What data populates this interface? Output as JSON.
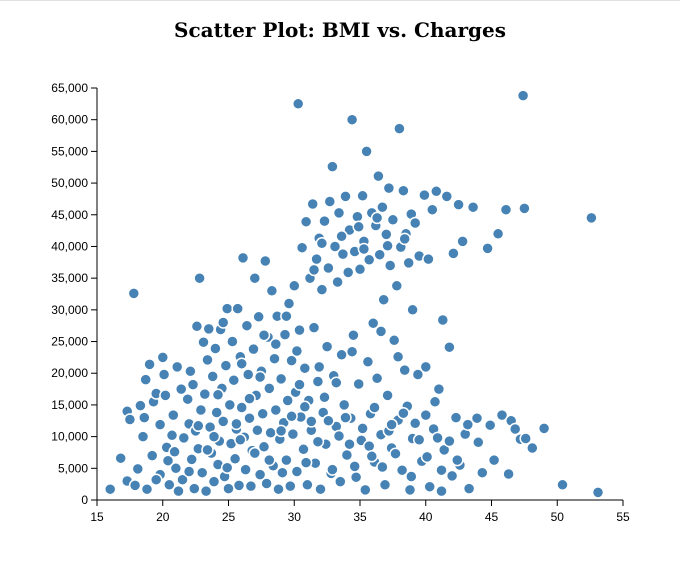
{
  "chart_data": {
    "type": "scatter",
    "title": "Scatter Plot: BMI vs. Charges",
    "xlabel": "",
    "ylabel": "",
    "xlim": [
      15,
      55
    ],
    "ylim": [
      0,
      65000
    ],
    "x_ticks": [
      "15",
      "20",
      "25",
      "30",
      "35",
      "40",
      "45",
      "50",
      "55"
    ],
    "y_ticks": [
      "0",
      "5,000",
      "10,000",
      "15,000",
      "20,000",
      "25,000",
      "30,000",
      "35,000",
      "40,000",
      "45,000",
      "50,000",
      "55,000",
      "60,000",
      "65,000"
    ],
    "grid": false,
    "point_color": "#4682b4",
    "points": [
      [
        16.0,
        1700
      ],
      [
        16.8,
        6600
      ],
      [
        17.3,
        3000
      ],
      [
        17.3,
        14000
      ],
      [
        17.5,
        12700
      ],
      [
        17.8,
        32600
      ],
      [
        17.9,
        2300
      ],
      [
        18.1,
        4900
      ],
      [
        18.3,
        14900
      ],
      [
        18.5,
        10000
      ],
      [
        18.6,
        13000
      ],
      [
        18.7,
        19000
      ],
      [
        18.8,
        1700
      ],
      [
        19.0,
        21400
      ],
      [
        19.2,
        7000
      ],
      [
        19.3,
        15500
      ],
      [
        19.5,
        16800
      ],
      [
        19.8,
        4000
      ],
      [
        19.8,
        11900
      ],
      [
        20.0,
        22500
      ],
      [
        20.1,
        19800
      ],
      [
        20.2,
        16500
      ],
      [
        20.3,
        8300
      ],
      [
        20.4,
        6200
      ],
      [
        20.5,
        2400
      ],
      [
        20.7,
        10200
      ],
      [
        20.8,
        13400
      ],
      [
        21.0,
        5000
      ],
      [
        21.1,
        21000
      ],
      [
        21.2,
        1400
      ],
      [
        21.5,
        3200
      ],
      [
        21.6,
        9800
      ],
      [
        21.9,
        15900
      ],
      [
        22.0,
        12000
      ],
      [
        22.1,
        20300
      ],
      [
        22.2,
        6400
      ],
      [
        22.3,
        18200
      ],
      [
        22.4,
        1800
      ],
      [
        22.5,
        10900
      ],
      [
        22.6,
        27400
      ],
      [
        22.7,
        8100
      ],
      [
        22.8,
        35000
      ],
      [
        22.9,
        14200
      ],
      [
        23.0,
        4300
      ],
      [
        23.1,
        24900
      ],
      [
        23.2,
        16700
      ],
      [
        23.3,
        1400
      ],
      [
        23.4,
        22100
      ],
      [
        23.5,
        27000
      ],
      [
        23.6,
        11500
      ],
      [
        23.7,
        7400
      ],
      [
        23.8,
        19500
      ],
      [
        23.9,
        2900
      ],
      [
        24.0,
        23900
      ],
      [
        24.1,
        13800
      ],
      [
        24.2,
        5600
      ],
      [
        24.3,
        9300
      ],
      [
        24.4,
        26900
      ],
      [
        24.5,
        17600
      ],
      [
        24.6,
        12400
      ],
      [
        24.7,
        3700
      ],
      [
        24.8,
        21200
      ],
      [
        24.9,
        30200
      ],
      [
        25.0,
        1800
      ],
      [
        25.1,
        15000
      ],
      [
        25.2,
        8900
      ],
      [
        25.3,
        25000
      ],
      [
        25.4,
        18900
      ],
      [
        25.5,
        6500
      ],
      [
        25.6,
        11200
      ],
      [
        25.7,
        30200
      ],
      [
        25.8,
        2300
      ],
      [
        25.9,
        22600
      ],
      [
        26.0,
        14600
      ],
      [
        26.1,
        38200
      ],
      [
        26.2,
        9900
      ],
      [
        26.3,
        4800
      ],
      [
        26.4,
        27500
      ],
      [
        26.5,
        19800
      ],
      [
        26.6,
        12900
      ],
      [
        26.7,
        2200
      ],
      [
        26.8,
        7800
      ],
      [
        26.9,
        23800
      ],
      [
        27.0,
        35000
      ],
      [
        27.1,
        16500
      ],
      [
        27.2,
        11000
      ],
      [
        27.3,
        28900
      ],
      [
        27.4,
        4000
      ],
      [
        27.5,
        20300
      ],
      [
        27.6,
        13600
      ],
      [
        27.7,
        8400
      ],
      [
        27.8,
        37700
      ],
      [
        27.9,
        2600
      ],
      [
        28.0,
        25700
      ],
      [
        28.1,
        17600
      ],
      [
        28.2,
        10600
      ],
      [
        28.3,
        33000
      ],
      [
        28.4,
        5400
      ],
      [
        28.5,
        22300
      ],
      [
        28.6,
        14200
      ],
      [
        28.7,
        29000
      ],
      [
        28.8,
        1700
      ],
      [
        28.9,
        9600
      ],
      [
        29.0,
        19100
      ],
      [
        29.2,
        12200
      ],
      [
        29.3,
        26100
      ],
      [
        29.4,
        6300
      ],
      [
        29.5,
        15700
      ],
      [
        29.6,
        31000
      ],
      [
        29.7,
        2200
      ],
      [
        29.8,
        22000
      ],
      [
        29.9,
        10400
      ],
      [
        30.0,
        33800
      ],
      [
        30.1,
        17000
      ],
      [
        30.2,
        4500
      ],
      [
        30.3,
        62500
      ],
      [
        30.4,
        26800
      ],
      [
        30.5,
        13100
      ],
      [
        30.6,
        39800
      ],
      [
        30.7,
        8000
      ],
      [
        30.8,
        20800
      ],
      [
        30.9,
        43900
      ],
      [
        31.0,
        2400
      ],
      [
        31.1,
        15700
      ],
      [
        31.2,
        35000
      ],
      [
        31.3,
        11000
      ],
      [
        31.4,
        46700
      ],
      [
        31.5,
        27200
      ],
      [
        31.6,
        5800
      ],
      [
        31.7,
        38000
      ],
      [
        31.8,
        18700
      ],
      [
        31.9,
        41300
      ],
      [
        32.0,
        1700
      ],
      [
        32.1,
        33200
      ],
      [
        32.2,
        13800
      ],
      [
        32.3,
        44000
      ],
      [
        32.4,
        8800
      ],
      [
        32.5,
        24200
      ],
      [
        32.6,
        36600
      ],
      [
        32.7,
        47100
      ],
      [
        32.8,
        4200
      ],
      [
        32.9,
        52600
      ],
      [
        33.0,
        19600
      ],
      [
        33.1,
        40000
      ],
      [
        33.2,
        11600
      ],
      [
        33.3,
        34400
      ],
      [
        33.4,
        45300
      ],
      [
        33.5,
        2900
      ],
      [
        33.6,
        22900
      ],
      [
        33.7,
        38800
      ],
      [
        33.8,
        15000
      ],
      [
        33.9,
        47900
      ],
      [
        34.0,
        7100
      ],
      [
        34.1,
        35900
      ],
      [
        34.2,
        42600
      ],
      [
        34.3,
        12900
      ],
      [
        34.4,
        60000
      ],
      [
        34.5,
        26000
      ],
      [
        34.6,
        39200
      ],
      [
        34.7,
        3600
      ],
      [
        34.8,
        44700
      ],
      [
        34.9,
        18300
      ],
      [
        35.0,
        36400
      ],
      [
        35.1,
        9400
      ],
      [
        35.2,
        48000
      ],
      [
        35.3,
        40800
      ],
      [
        35.4,
        1600
      ],
      [
        35.5,
        55000
      ],
      [
        35.6,
        21800
      ],
      [
        35.7,
        37900
      ],
      [
        35.8,
        13600
      ],
      [
        35.9,
        45300
      ],
      [
        36.0,
        27900
      ],
      [
        36.1,
        6000
      ],
      [
        36.2,
        43300
      ],
      [
        36.3,
        19200
      ],
      [
        36.4,
        51100
      ],
      [
        36.5,
        38700
      ],
      [
        36.6,
        10300
      ],
      [
        36.7,
        46200
      ],
      [
        36.8,
        31600
      ],
      [
        36.9,
        2400
      ],
      [
        37.0,
        41900
      ],
      [
        37.1,
        16500
      ],
      [
        37.2,
        49200
      ],
      [
        37.3,
        37000
      ],
      [
        37.4,
        8200
      ],
      [
        37.5,
        44200
      ],
      [
        37.6,
        25200
      ],
      [
        37.8,
        33800
      ],
      [
        37.9,
        12600
      ],
      [
        38.0,
        58600
      ],
      [
        38.1,
        39900
      ],
      [
        38.2,
        4700
      ],
      [
        38.3,
        48800
      ],
      [
        38.4,
        20500
      ],
      [
        38.5,
        42000
      ],
      [
        38.6,
        14800
      ],
      [
        38.7,
        37400
      ],
      [
        38.8,
        1600
      ],
      [
        38.9,
        45100
      ],
      [
        39.0,
        9700
      ],
      [
        39.2,
        43700
      ],
      [
        39.4,
        19800
      ],
      [
        39.5,
        38500
      ],
      [
        39.7,
        6100
      ],
      [
        39.9,
        48100
      ],
      [
        40.0,
        13400
      ],
      [
        40.2,
        38000
      ],
      [
        40.3,
        2100
      ],
      [
        40.5,
        45800
      ],
      [
        40.6,
        11200
      ],
      [
        40.8,
        48700
      ],
      [
        41.0,
        17500
      ],
      [
        41.2,
        1400
      ],
      [
        41.3,
        28400
      ],
      [
        41.4,
        7900
      ],
      [
        41.6,
        47900
      ],
      [
        41.8,
        24100
      ],
      [
        42.0,
        3800
      ],
      [
        42.1,
        38900
      ],
      [
        42.3,
        13000
      ],
      [
        42.5,
        46600
      ],
      [
        42.6,
        5500
      ],
      [
        42.8,
        40800
      ],
      [
        43.0,
        10400
      ],
      [
        43.3,
        1800
      ],
      [
        43.6,
        46200
      ],
      [
        43.9,
        12900
      ],
      [
        44.0,
        9100
      ],
      [
        44.3,
        4300
      ],
      [
        44.7,
        39700
      ],
      [
        44.9,
        11800
      ],
      [
        45.2,
        6300
      ],
      [
        45.5,
        42000
      ],
      [
        45.8,
        13400
      ],
      [
        46.1,
        45800
      ],
      [
        46.3,
        4100
      ],
      [
        46.5,
        12500
      ],
      [
        46.8,
        11200
      ],
      [
        47.2,
        9600
      ],
      [
        47.4,
        63800
      ],
      [
        47.5,
        46000
      ],
      [
        47.6,
        9700
      ],
      [
        48.1,
        8200
      ],
      [
        49.0,
        11300
      ],
      [
        50.4,
        2400
      ],
      [
        52.6,
        44500
      ],
      [
        53.1,
        1200
      ],
      [
        19.5,
        3200
      ],
      [
        20.9,
        7600
      ],
      [
        21.4,
        17500
      ],
      [
        22.7,
        11700
      ],
      [
        23.4,
        7900
      ],
      [
        24.2,
        16600
      ],
      [
        24.9,
        5100
      ],
      [
        25.6,
        12000
      ],
      [
        26.6,
        16000
      ],
      [
        27.4,
        19400
      ],
      [
        28.1,
        6300
      ],
      [
        28.6,
        24600
      ],
      [
        29.1,
        4300
      ],
      [
        29.8,
        13200
      ],
      [
        30.4,
        18200
      ],
      [
        30.9,
        5900
      ],
      [
        31.3,
        12400
      ],
      [
        31.8,
        9200
      ],
      [
        32.3,
        16200
      ],
      [
        32.9,
        4800
      ],
      [
        33.4,
        10100
      ],
      [
        33.9,
        13000
      ],
      [
        34.6,
        5300
      ],
      [
        35.2,
        11300
      ],
      [
        35.7,
        8500
      ],
      [
        36.1,
        14600
      ],
      [
        36.7,
        5200
      ],
      [
        37.2,
        10900
      ],
      [
        37.7,
        7300
      ],
      [
        38.3,
        13700
      ],
      [
        38.9,
        3700
      ],
      [
        39.5,
        9500
      ],
      [
        40.1,
        6800
      ],
      [
        40.7,
        15500
      ],
      [
        41.2,
        4700
      ],
      [
        41.8,
        9300
      ],
      [
        42.4,
        6300
      ],
      [
        43.2,
        11900
      ],
      [
        22.0,
        4500
      ],
      [
        23.9,
        10000
      ],
      [
        25.9,
        9500
      ],
      [
        27.0,
        7400
      ],
      [
        29.0,
        10900
      ],
      [
        30.8,
        14700
      ],
      [
        32.6,
        12500
      ],
      [
        34.2,
        8800
      ],
      [
        35.9,
        6900
      ],
      [
        37.4,
        11900
      ],
      [
        39.2,
        12100
      ],
      [
        40.9,
        9800
      ],
      [
        33.6,
        41600
      ],
      [
        35.3,
        39600
      ],
      [
        31.5,
        36300
      ],
      [
        36.3,
        44500
      ],
      [
        38.4,
        41200
      ],
      [
        34.9,
        43100
      ],
      [
        32.1,
        40500
      ],
      [
        37.1,
        40100
      ],
      [
        26.0,
        21500
      ],
      [
        27.7,
        26000
      ],
      [
        24.6,
        28000
      ],
      [
        29.4,
        29000
      ],
      [
        31.9,
        21000
      ],
      [
        30.2,
        23500
      ],
      [
        33.2,
        18500
      ],
      [
        34.4,
        23400
      ],
      [
        36.6,
        26600
      ],
      [
        39.0,
        30000
      ],
      [
        40.0,
        21000
      ],
      [
        37.9,
        22600
      ]
    ]
  }
}
